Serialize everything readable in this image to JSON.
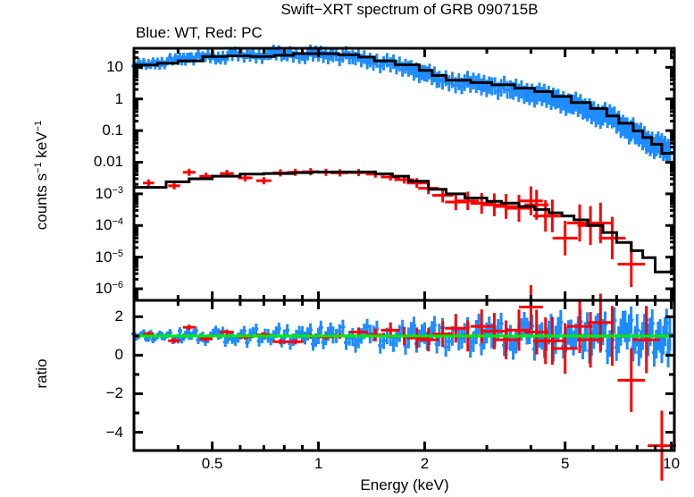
{
  "chart_data": [
    {
      "panel": "spectrum",
      "type": "scatter",
      "title": "Swift−XRT spectrum of GRB 090715B",
      "subtitle": "Blue: WT, Red: PC",
      "xlabel": "Energy (keV)",
      "ylabel": "counts s⁻¹ keV⁻¹",
      "xscale": "log",
      "yscale": "log",
      "xlim": [
        0.3,
        10.2
      ],
      "ylim": [
        4.3e-07,
        40
      ],
      "grid": false,
      "yticks": [
        {
          "value": 10,
          "label": "10"
        },
        {
          "value": 1,
          "label": "1"
        },
        {
          "value": 0.1,
          "label": "0.1"
        },
        {
          "value": 0.01,
          "label": "0.01"
        },
        {
          "value": 0.001,
          "label": "10",
          "exp": "−3"
        },
        {
          "value": 0.0001,
          "label": "10",
          "exp": "−4"
        },
        {
          "value": 1e-05,
          "label": "10",
          "exp": "−5"
        },
        {
          "value": 1e-06,
          "label": "10",
          "exp": "−6"
        }
      ],
      "series": [
        {
          "name": "WT data",
          "color": "#1e8cff",
          "style": "crosses",
          "x": [
            0.3,
            0.33,
            0.36,
            0.4,
            0.43,
            0.47,
            0.52,
            0.57,
            0.64,
            0.72,
            0.8,
            0.9,
            1.0,
            1.1,
            1.25,
            1.4,
            1.6,
            1.8,
            2.0,
            2.2,
            2.5,
            2.8,
            3.1,
            3.5,
            3.9,
            4.3,
            4.7,
            5.2,
            5.7,
            6.2,
            6.8,
            7.4,
            8.0,
            8.6,
            9.3,
            9.9
          ],
          "y": [
            11,
            13,
            15,
            17,
            20,
            22,
            21,
            24,
            23,
            26,
            27,
            26,
            25,
            24,
            21,
            17,
            12,
            9,
            6.5,
            4.2,
            3.5,
            2.9,
            2.5,
            2.0,
            1.6,
            1.2,
            0.95,
            0.7,
            0.5,
            0.33,
            0.25,
            0.12,
            0.08,
            0.045,
            0.03,
            0.02
          ]
        },
        {
          "name": "PC data",
          "color": "#ff0000",
          "style": "crosses",
          "x": [
            0.33,
            0.39,
            0.43,
            0.48,
            0.55,
            0.62,
            0.7,
            0.78,
            0.86,
            0.95,
            1.05,
            1.15,
            1.3,
            1.45,
            1.6,
            1.75,
            1.9,
            2.05,
            2.25,
            2.45,
            2.65,
            2.9,
            3.15,
            3.4,
            3.7,
            4.0,
            4.15,
            4.4,
            4.6,
            5.0,
            5.5,
            5.9,
            6.3,
            6.8,
            7.7
          ],
          "y": [
            0.0022,
            0.0018,
            0.0048,
            0.0036,
            0.0044,
            0.0032,
            0.0026,
            0.0046,
            0.0048,
            0.005,
            0.0048,
            0.0046,
            0.0047,
            0.0042,
            0.0034,
            0.0028,
            0.0022,
            0.0015,
            0.0009,
            0.00055,
            0.0006,
            0.0005,
            0.00045,
            0.0004,
            0.00035,
            0.0006,
            0.00045,
            0.0002,
            0.0002,
            4e-05,
            0.00012,
            0.0001,
            0.00012,
            4e-05,
            6e-06
          ]
        },
        {
          "name": "WT model",
          "color": "#000000",
          "style": "step",
          "x": [
            0.3,
            0.35,
            0.4,
            0.47,
            0.55,
            0.64,
            0.75,
            0.85,
            1.0,
            1.14,
            1.3,
            1.44,
            1.65,
            1.93,
            2.1,
            2.3,
            2.7,
            3.1,
            3.6,
            4.1,
            4.6,
            5.2,
            5.9,
            6.56,
            7.1,
            7.8,
            8.3,
            8.8,
            9.4,
            10.2
          ],
          "y": [
            11.8,
            13.5,
            16,
            22,
            23,
            22,
            24,
            27,
            27,
            25,
            21,
            16,
            12,
            8,
            5.5,
            3.9,
            3.3,
            2.8,
            2.2,
            1.7,
            1.2,
            0.77,
            0.5,
            0.29,
            0.17,
            0.097,
            0.06,
            0.037,
            0.019,
            0.019
          ]
        },
        {
          "name": "PC model",
          "color": "#000000",
          "style": "step",
          "x": [
            0.3,
            0.37,
            0.43,
            0.5,
            0.6,
            0.7,
            0.85,
            0.96,
            1.1,
            1.28,
            1.45,
            1.62,
            1.8,
            2.05,
            2.3,
            2.6,
            3.0,
            3.3,
            3.7,
            4.1,
            4.5,
            4.9,
            5.3,
            5.8,
            6.4,
            7.0,
            7.7,
            8.3,
            9.0,
            9.3,
            10.2
          ],
          "y": [
            0.0016,
            0.0024,
            0.003,
            0.0036,
            0.0042,
            0.0044,
            0.0047,
            0.0049,
            0.0049,
            0.0049,
            0.0043,
            0.0036,
            0.0025,
            0.0014,
            0.001,
            0.00074,
            0.00058,
            0.00051,
            0.0004,
            0.00032,
            0.00025,
            0.0002,
            0.00015,
            0.0001,
            6e-05,
            2.9e-05,
            1.6e-05,
            9.6e-06,
            3.4e-06,
            3.4e-06,
            3.4e-06
          ]
        }
      ]
    },
    {
      "panel": "ratio",
      "type": "scatter",
      "xlabel": "Energy (keV)",
      "ylabel": "ratio",
      "xscale": "log",
      "xlim": [
        0.3,
        10.2
      ],
      "ylim": [
        -4.95,
        2.85
      ],
      "grid": false,
      "xticks": [
        {
          "value": 0.5,
          "label": "0.5"
        },
        {
          "value": 1,
          "label": "1"
        },
        {
          "value": 2,
          "label": "2"
        },
        {
          "value": 5,
          "label": "5"
        },
        {
          "value": 10,
          "label": "10"
        }
      ],
      "yticks": [
        {
          "value": 2,
          "label": "2"
        },
        {
          "value": 0,
          "label": "0"
        },
        {
          "value": -2,
          "label": "−2"
        },
        {
          "value": -4,
          "label": "−4"
        }
      ],
      "reference_line": {
        "y": 1,
        "color": "#00ee00"
      },
      "series": [
        {
          "name": "WT ratio",
          "color": "#1e8cff",
          "x": [
            0.3,
            0.33,
            0.36,
            0.4,
            0.43,
            0.47,
            0.52,
            0.57,
            0.64,
            0.72,
            0.8,
            0.9,
            1.0,
            1.1,
            1.25,
            1.4,
            1.6,
            1.8,
            2.0,
            2.2,
            2.5,
            2.8,
            3.1,
            3.5,
            3.9,
            4.3,
            4.7,
            5.2,
            5.7,
            6.2,
            6.8,
            7.4,
            8.0,
            8.6,
            9.3,
            9.9
          ],
          "y": [
            1.1,
            0.9,
            1.0,
            0.85,
            1.05,
            0.95,
            1.1,
            0.9,
            1.05,
            1.0,
            0.95,
            1.1,
            1.0,
            1.05,
            0.95,
            1.1,
            1.0,
            0.9,
            1.15,
            1.05,
            0.85,
            1.2,
            1.0,
            0.9,
            1.25,
            1.0,
            0.8,
            1.1,
            0.95,
            1.4,
            0.8,
            1.5,
            1.3,
            0.8,
            1.0,
            1.1
          ]
        },
        {
          "name": "PC ratio",
          "color": "#ff0000",
          "x": [
            0.33,
            0.39,
            0.43,
            0.48,
            0.55,
            0.62,
            0.7,
            0.78,
            0.86,
            0.95,
            1.05,
            1.15,
            1.3,
            1.45,
            1.6,
            1.75,
            1.9,
            2.05,
            2.25,
            2.45,
            2.65,
            2.9,
            3.15,
            3.4,
            3.7,
            4.0,
            4.15,
            4.4,
            4.6,
            5.0,
            5.5,
            5.9,
            6.3,
            6.8,
            7.7,
            8.5,
            9.4
          ],
          "y": [
            1.1,
            0.75,
            1.45,
            0.85,
            1.2,
            0.95,
            1.05,
            0.7,
            0.7,
            1.0,
            0.95,
            1.0,
            1.2,
            1.05,
            1.3,
            1.0,
            0.9,
            0.8,
            1.1,
            1.4,
            1.0,
            1.5,
            1.25,
            0.8,
            1.3,
            2.5,
            1.2,
            0.75,
            0.75,
            0.35,
            1.5,
            0.8,
            1.7,
            1.0,
            -1.3,
            0.8,
            -4.7
          ]
        }
      ]
    }
  ]
}
